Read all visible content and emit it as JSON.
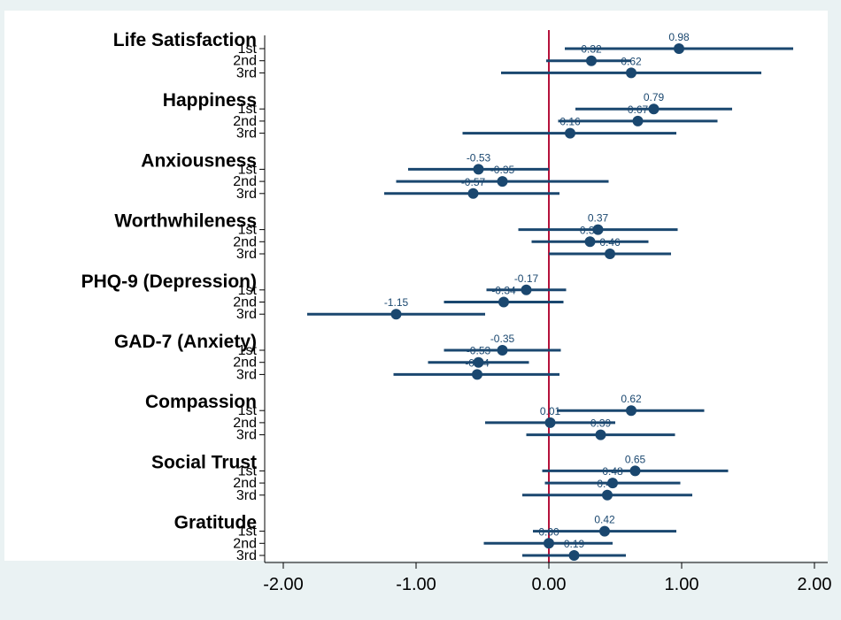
{
  "colors": {
    "background": "#eaf2f3",
    "plot": "#ffffff",
    "marker": "#1a476f",
    "zero_line": "#b5123b",
    "axis": "#000000"
  },
  "chart_data": {
    "type": "coefficient-plot",
    "orientation": "horizontal",
    "xlim": [
      -2.0,
      2.0
    ],
    "xticks": [
      "-2.00",
      "-1.00",
      "0.00",
      "1.00",
      "2.00"
    ],
    "xtick_values": [
      -2,
      -1,
      0,
      1,
      2
    ],
    "reference_line": 0,
    "waves": [
      "1st",
      "2nd",
      "3rd"
    ],
    "groups": [
      {
        "label": "Life Satisfaction",
        "points": [
          {
            "wave": "1st",
            "estimate": 0.98,
            "label": "0.98",
            "ci": [
              0.12,
              1.84
            ]
          },
          {
            "wave": "2nd",
            "estimate": 0.32,
            "label": "0.32",
            "ci": [
              -0.02,
              0.62
            ]
          },
          {
            "wave": "3rd",
            "estimate": 0.62,
            "label": "0.62",
            "ci": [
              -0.36,
              1.6
            ]
          }
        ]
      },
      {
        "label": "Happiness",
        "points": [
          {
            "wave": "1st",
            "estimate": 0.79,
            "label": "0.79",
            "ci": [
              0.2,
              1.38
            ]
          },
          {
            "wave": "2nd",
            "estimate": 0.67,
            "label": "0.67",
            "ci": [
              0.07,
              1.27
            ]
          },
          {
            "wave": "3rd",
            "estimate": 0.16,
            "label": "0.16",
            "ci": [
              -0.65,
              0.96
            ]
          }
        ]
      },
      {
        "label": "Anxiousness",
        "points": [
          {
            "wave": "1st",
            "estimate": -0.53,
            "label": "-0.53",
            "ci": [
              -1.06,
              0.0
            ]
          },
          {
            "wave": "2nd",
            "estimate": -0.35,
            "label": "-0.35",
            "ci": [
              -1.15,
              0.45
            ]
          },
          {
            "wave": "3rd",
            "estimate": -0.57,
            "label": "-0.57",
            "ci": [
              -1.24,
              0.08
            ]
          }
        ]
      },
      {
        "label": "Worthwhileness",
        "points": [
          {
            "wave": "1st",
            "estimate": 0.37,
            "label": "0.37",
            "ci": [
              -0.23,
              0.97
            ]
          },
          {
            "wave": "2nd",
            "estimate": 0.31,
            "label": "0.31",
            "ci": [
              -0.13,
              0.75
            ]
          },
          {
            "wave": "3rd",
            "estimate": 0.46,
            "label": "0.46",
            "ci": [
              0.0,
              0.92
            ]
          }
        ]
      },
      {
        "label": "PHQ-9 (Depression)",
        "points": [
          {
            "wave": "1st",
            "estimate": -0.17,
            "label": "-0.17",
            "ci": [
              -0.47,
              0.13
            ]
          },
          {
            "wave": "2nd",
            "estimate": -0.34,
            "label": "-0.34",
            "ci": [
              -0.79,
              0.11
            ]
          },
          {
            "wave": "3rd",
            "estimate": -1.15,
            "label": "-1.15",
            "ci": [
              -1.82,
              -0.48
            ]
          }
        ]
      },
      {
        "label": "GAD-7 (Anxiety)",
        "points": [
          {
            "wave": "1st",
            "estimate": -0.35,
            "label": "-0.35",
            "ci": [
              -0.79,
              0.09
            ]
          },
          {
            "wave": "2nd",
            "estimate": -0.53,
            "label": "-0.53",
            "ci": [
              -0.91,
              -0.15
            ]
          },
          {
            "wave": "3rd",
            "estimate": -0.54,
            "label": "-0.54",
            "ci": [
              -1.17,
              0.08
            ]
          }
        ]
      },
      {
        "label": "Compassion",
        "points": [
          {
            "wave": "1st",
            "estimate": 0.62,
            "label": "0.62",
            "ci": [
              0.06,
              1.17
            ]
          },
          {
            "wave": "2nd",
            "estimate": 0.01,
            "label": "0.01",
            "ci": [
              -0.48,
              0.5
            ]
          },
          {
            "wave": "3rd",
            "estimate": 0.39,
            "label": "0.39",
            "ci": [
              -0.17,
              0.95
            ]
          }
        ]
      },
      {
        "label": "Social Trust",
        "points": [
          {
            "wave": "1st",
            "estimate": 0.65,
            "label": "0.65",
            "ci": [
              -0.05,
              1.35
            ]
          },
          {
            "wave": "2nd",
            "estimate": 0.48,
            "label": "0.48",
            "ci": [
              -0.03,
              0.99
            ]
          },
          {
            "wave": "3rd",
            "estimate": 0.44,
            "label": "0.44",
            "ci": [
              -0.2,
              1.08
            ]
          }
        ]
      },
      {
        "label": "Gratitude",
        "points": [
          {
            "wave": "1st",
            "estimate": 0.42,
            "label": "0.42",
            "ci": [
              -0.12,
              0.96
            ]
          },
          {
            "wave": "2nd",
            "estimate": 0.0,
            "label": "0.00",
            "ci": [
              -0.49,
              0.48
            ]
          },
          {
            "wave": "3rd",
            "estimate": 0.19,
            "label": "0.19",
            "ci": [
              -0.2,
              0.58
            ]
          }
        ]
      }
    ]
  }
}
